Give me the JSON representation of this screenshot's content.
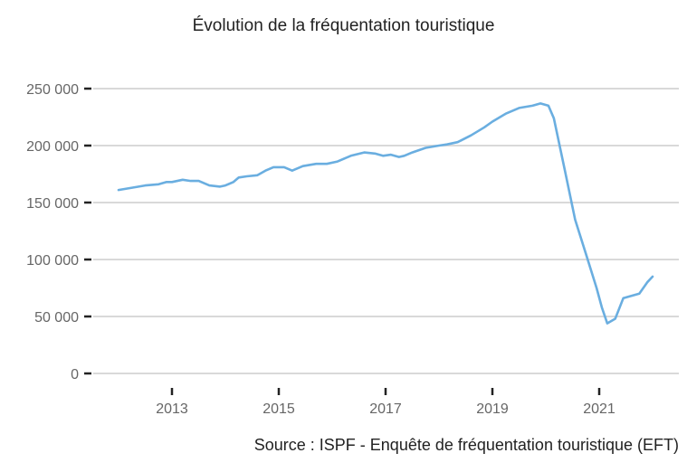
{
  "title": "Évolution de la fréquentation touristique",
  "source": "Source : ISPF - Enquête de fréquentation touristique (EFT)",
  "colors": {
    "line": "#6aaee0",
    "grid": "#d9d9d9",
    "tick": "#222222",
    "label": "#666666"
  },
  "chart_data": {
    "type": "line",
    "title": "Évolution de la fréquentation touristique",
    "xlabel": "",
    "ylabel": "",
    "ylim": [
      0,
      250000
    ],
    "xlim": [
      2011.4,
      2022.5
    ],
    "grid": true,
    "legend": "none",
    "y_ticks": [
      0,
      50000,
      100000,
      150000,
      200000,
      250000
    ],
    "y_tick_labels": [
      "0",
      "50 000",
      "100 000",
      "150 000",
      "200 000",
      "250 000"
    ],
    "x_ticks": [
      2013,
      2015,
      2017,
      2019,
      2021
    ],
    "x_tick_labels": [
      "2013",
      "2015",
      "2017",
      "2019",
      "2021"
    ],
    "series": [
      {
        "name": "Fréquentation touristique",
        "x": [
          2012.0,
          2012.25,
          2012.5,
          2012.75,
          2012.9,
          2013.0,
          2013.2,
          2013.35,
          2013.5,
          2013.7,
          2013.9,
          2014.0,
          2014.15,
          2014.25,
          2014.4,
          2014.6,
          2014.75,
          2014.9,
          2015.1,
          2015.25,
          2015.45,
          2015.7,
          2015.9,
          2016.1,
          2016.35,
          2016.6,
          2016.8,
          2016.95,
          2017.1,
          2017.25,
          2017.35,
          2017.5,
          2017.75,
          2018.0,
          2018.15,
          2018.35,
          2018.6,
          2018.85,
          2019.0,
          2019.25,
          2019.5,
          2019.75,
          2019.9,
          2020.05,
          2020.15,
          2020.35,
          2020.55,
          2020.75,
          2020.95,
          2021.05,
          2021.15,
          2021.3,
          2021.45,
          2021.6,
          2021.75,
          2021.9,
          2022.0
        ],
        "values": [
          161000,
          163000,
          165000,
          166000,
          168000,
          168000,
          170000,
          169000,
          169000,
          165000,
          164000,
          165000,
          168000,
          172000,
          173000,
          174000,
          178000,
          181000,
          181000,
          178000,
          182000,
          184000,
          184000,
          186000,
          191000,
          194000,
          193000,
          191000,
          192000,
          190000,
          191000,
          194000,
          198000,
          200000,
          201000,
          203000,
          209000,
          216000,
          221000,
          228000,
          233000,
          235000,
          237000,
          235000,
          224000,
          180000,
          135000,
          105000,
          75000,
          58000,
          44000,
          48000,
          66000,
          68000,
          70000,
          80000,
          85000
        ]
      }
    ]
  }
}
